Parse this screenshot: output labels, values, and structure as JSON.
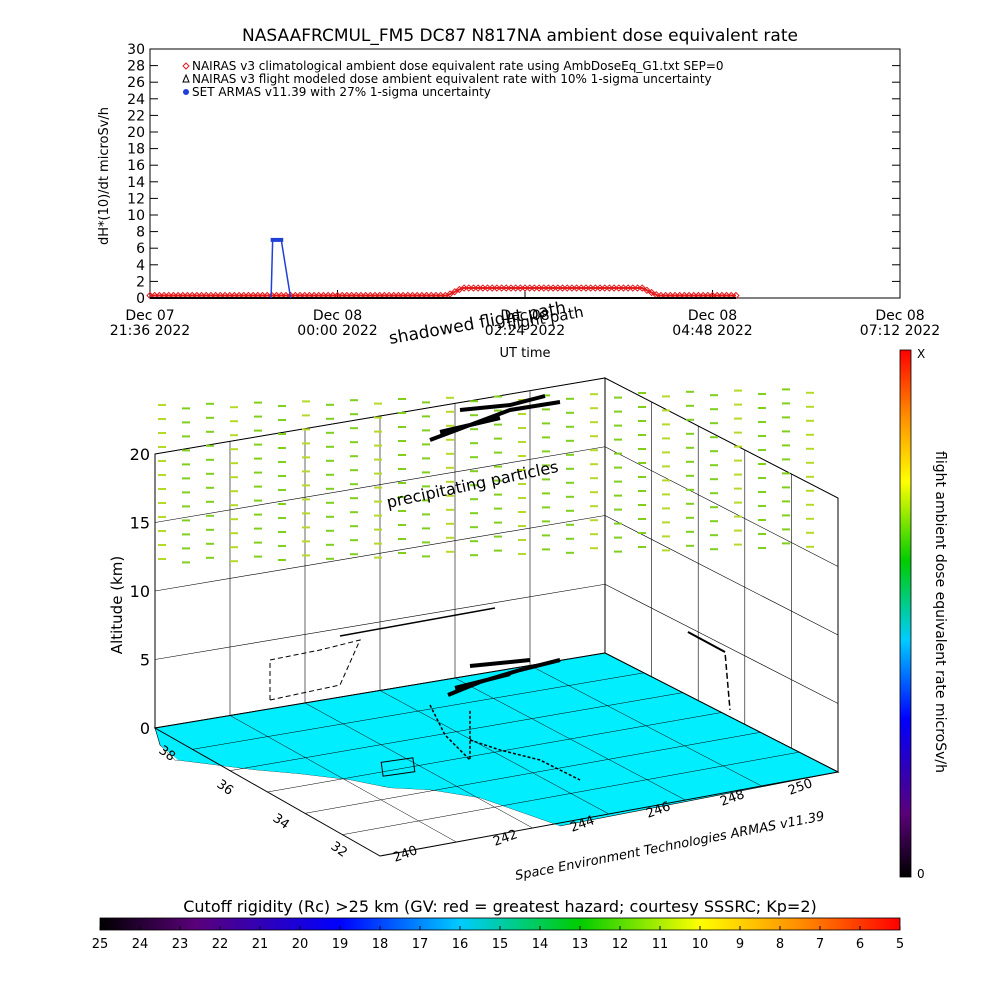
{
  "colors": {
    "climatological": "#e41a1c",
    "flight_modeled": "#000000",
    "armas": "#1f3fd6",
    "ground": "#00eeff",
    "precip": "#9acd32"
  },
  "chart_data": [
    {
      "type": "line",
      "title": "NASAAFRCMUL_FM5 DC87 N817NA ambient dose equivalent rate",
      "ylabel": "dH*(10)/dt microSv/h",
      "xlabel": "UT time",
      "ylim": [
        0,
        30
      ],
      "yticks": [
        0,
        2,
        4,
        6,
        8,
        10,
        12,
        14,
        16,
        18,
        20,
        22,
        24,
        26,
        28,
        30
      ],
      "xlim_hours": [
        0,
        9.6
      ],
      "xticks": [
        {
          "h": 0,
          "line1": "Dec 07",
          "line2": "21:36 2022"
        },
        {
          "h": 2.4,
          "line1": "Dec 08",
          "line2": "00:00 2022"
        },
        {
          "h": 4.8,
          "line1": "Dec 08",
          "line2": "02:24 2022"
        },
        {
          "h": 7.2,
          "line1": "Dec 08",
          "line2": "04:48 2022"
        },
        {
          "h": 9.6,
          "line1": "Dec 08",
          "line2": "07:12 2022"
        }
      ],
      "legend": [
        {
          "label": "NAIRAS v3 climatological ambient dose equivalent rate using AmbDoseEq_G1.txt SEP=0",
          "marker": "diamond",
          "color": "#e41a1c"
        },
        {
          "label": "NAIRAS v3 flight modeled dose ambient equivalent rate with 10% 1-sigma uncertainty",
          "marker": "triangle",
          "color": "#000000"
        },
        {
          "label": "SET ARMAS v11.39 with 27% 1-sigma uncertainty",
          "marker": "circle",
          "color": "#1f3fd6"
        }
      ],
      "series": [
        {
          "name": "NAIRAS v3 climatological ambient dose equivalent rate using AmbDoseEq_G1.txt SEP=0",
          "x": [
            0,
            1,
            2,
            3,
            3.8,
            4.0,
            4.5,
            5.0,
            5.5,
            6.0,
            6.3,
            6.5,
            7.0,
            7.3,
            7.5
          ],
          "y": [
            0.3,
            0.3,
            0.3,
            0.3,
            0.3,
            1.2,
            1.2,
            1.2,
            1.2,
            1.2,
            1.2,
            0.3,
            0.3,
            0.3,
            0.3
          ]
        },
        {
          "name": "NAIRAS v3 flight modeled dose ambient equivalent rate with 10% 1-sigma uncertainty",
          "x": [
            0,
            7.5
          ],
          "y": [
            0.0,
            0.0
          ]
        },
        {
          "name": "SET ARMAS v11.39 with 27% 1-sigma uncertainty",
          "x": [
            1.55,
            1.57,
            1.63,
            1.65,
            1.68,
            1.8
          ],
          "y": [
            0,
            7.0,
            7.0,
            7.0,
            7.0,
            0
          ]
        }
      ],
      "annotations": [
        "shadowed flight path",
        "flight path"
      ]
    },
    {
      "type": "scatter",
      "ylabel": "Altitude (km)",
      "zticks": [
        0,
        5,
        10,
        15,
        20
      ],
      "lat_ticks": [
        "38",
        "36",
        "34",
        "32"
      ],
      "lon_ticks": [
        "240",
        "242",
        "244",
        "246",
        "248",
        "250"
      ],
      "annotation": "precipitating particles",
      "credit": "Space Environment Technologies ARMAS v11.39",
      "right_colorbar": {
        "label": "flight ambient dose equivalent rate microSv/h",
        "top": "X",
        "bottom": "0"
      },
      "bottom_colorbar": {
        "title": "Cutoff rigidity (Rc) >25 km (GV: red = greatest hazard; courtesy SSSRC; Kp=2)",
        "ticks": [
          "25",
          "24",
          "23",
          "22",
          "21",
          "20",
          "19",
          "18",
          "17",
          "16",
          "15",
          "14",
          "13",
          "12",
          "11",
          "10",
          "9",
          "8",
          "7",
          "6",
          "5"
        ]
      }
    }
  ]
}
